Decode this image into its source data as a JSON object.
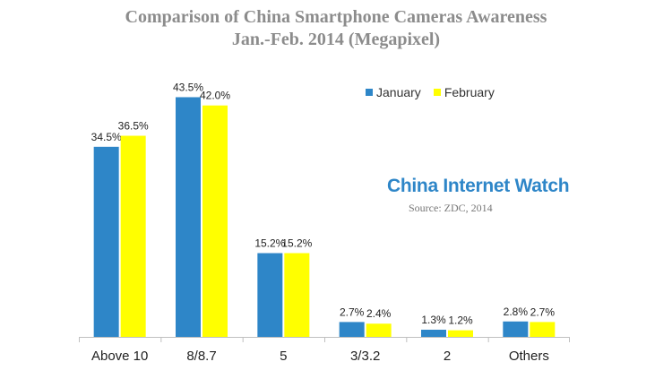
{
  "chart_data": {
    "type": "bar",
    "title": "Comparison of China Smartphone Cameras Awareness",
    "subtitle": "Jan.-Feb. 2014 (Megapixel)",
    "categories": [
      "Above 10",
      "8/8.7",
      "5",
      "3/3.2",
      "2",
      "Others"
    ],
    "series": [
      {
        "name": "January",
        "color": "#2e86c8",
        "values": [
          34.5,
          43.5,
          15.2,
          2.7,
          1.3,
          2.8
        ],
        "labels": [
          "34.5%",
          "43.5%",
          "15.2%",
          "2.7%",
          "1.3%",
          "2.8%"
        ]
      },
      {
        "name": "February",
        "color": "#ffff00",
        "values": [
          36.5,
          42.0,
          15.2,
          2.4,
          1.2,
          2.7
        ],
        "labels": [
          "36.5%",
          "42.0%",
          "15.2%",
          "2.4%",
          "1.2%",
          "2.7%"
        ]
      }
    ],
    "ylim": [
      0,
      48
    ],
    "grid": false,
    "legend_position": "top-right",
    "xlabel": "",
    "ylabel": ""
  },
  "watermark": "China Internet Watch",
  "source": "Source: ZDC, 2014",
  "colors": {
    "title": "#8c8c8c",
    "axis": "#bfbfbf",
    "watermark": "#2e86c8"
  }
}
